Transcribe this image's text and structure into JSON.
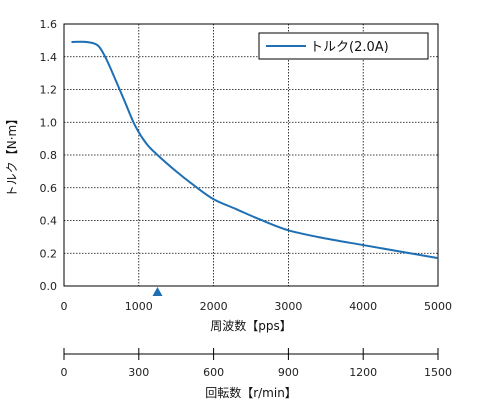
{
  "chart_data": {
    "type": "line",
    "xlabel": "周波数【pps】",
    "ylabel": "トルク【N·m】",
    "xlim": [
      0,
      5000
    ],
    "ylim": [
      0,
      1.6
    ],
    "x_ticks": [
      "0",
      "1000",
      "2000",
      "3000",
      "4000",
      "5000"
    ],
    "y_ticks": [
      "0.0",
      "0.2",
      "0.4",
      "0.6",
      "0.8",
      "1.0",
      "1.2",
      "1.4",
      "1.6"
    ],
    "grid": true,
    "legend_position": "top-right",
    "series": [
      {
        "name": "トルク(2.0A)",
        "color": "#1f6fb5",
        "x": [
          100,
          300,
          450,
          550,
          650,
          800,
          950,
          1100,
          1250,
          1500,
          1750,
          2000,
          2300,
          2600,
          3000,
          3500,
          4000,
          4500,
          5000
        ],
        "y": [
          1.49,
          1.49,
          1.47,
          1.4,
          1.3,
          1.14,
          0.98,
          0.87,
          0.8,
          0.7,
          0.61,
          0.53,
          0.47,
          0.41,
          0.34,
          0.29,
          0.25,
          0.21,
          0.17
        ]
      }
    ],
    "marker": {
      "x": 1250,
      "shape": "triangle",
      "color": "#1f6fb5"
    },
    "secondary_axis": {
      "label": "回転数【r/min】",
      "ticks": [
        "0",
        "300",
        "600",
        "900",
        "1200",
        "1500"
      ],
      "range": [
        0,
        1500
      ]
    }
  }
}
